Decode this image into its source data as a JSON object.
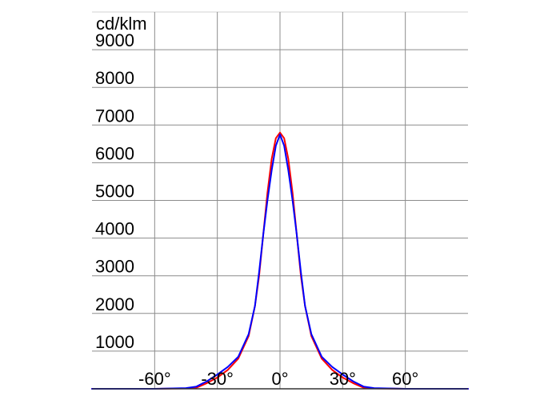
{
  "chart_data": {
    "type": "line",
    "ylabel": "cd/klm",
    "x_ticks": [
      -60,
      -30,
      0,
      30,
      60
    ],
    "x_tick_labels": [
      "-60°",
      "-30°",
      "0°",
      "30°",
      "60°"
    ],
    "y_ticks": [
      1000,
      2000,
      3000,
      4000,
      5000,
      6000,
      7000,
      8000,
      9000
    ],
    "y_tick_labels": [
      "1000",
      "2000",
      "3000",
      "4000",
      "5000",
      "6000",
      "7000",
      "8000",
      "9000"
    ],
    "xlim": [
      -90,
      90
    ],
    "ylim": [
      0,
      10000
    ],
    "grid": true,
    "series": [
      {
        "color": "#ff0000",
        "x": [
          -90,
          -60,
          -45,
          -40,
          -35,
          -30,
          -25,
          -20,
          -15,
          -12,
          -10,
          -8,
          -6,
          -4,
          -2,
          0,
          2,
          4,
          6,
          8,
          10,
          12,
          15,
          20,
          25,
          30,
          35,
          40,
          45,
          60,
          90
        ],
        "y": [
          0,
          0,
          10,
          30,
          150,
          300,
          500,
          800,
          1400,
          2200,
          3000,
          4100,
          5200,
          6100,
          6650,
          6800,
          6650,
          6100,
          5200,
          4100,
          3000,
          2200,
          1400,
          800,
          500,
          300,
          150,
          30,
          10,
          0,
          0
        ]
      },
      {
        "color": "#0000ff",
        "x": [
          -90,
          -60,
          -45,
          -40,
          -35,
          -30,
          -25,
          -20,
          -15,
          -12,
          -10,
          -8,
          -6,
          -4,
          -2,
          0,
          2,
          4,
          6,
          8,
          10,
          12,
          15,
          20,
          25,
          30,
          35,
          40,
          45,
          60,
          90
        ],
        "y": [
          0,
          0,
          20,
          60,
          200,
          380,
          580,
          850,
          1450,
          2200,
          3100,
          4100,
          5000,
          5800,
          6450,
          6750,
          6450,
          5800,
          5000,
          4100,
          3100,
          2200,
          1450,
          850,
          580,
          380,
          200,
          60,
          20,
          0,
          0
        ]
      }
    ]
  }
}
